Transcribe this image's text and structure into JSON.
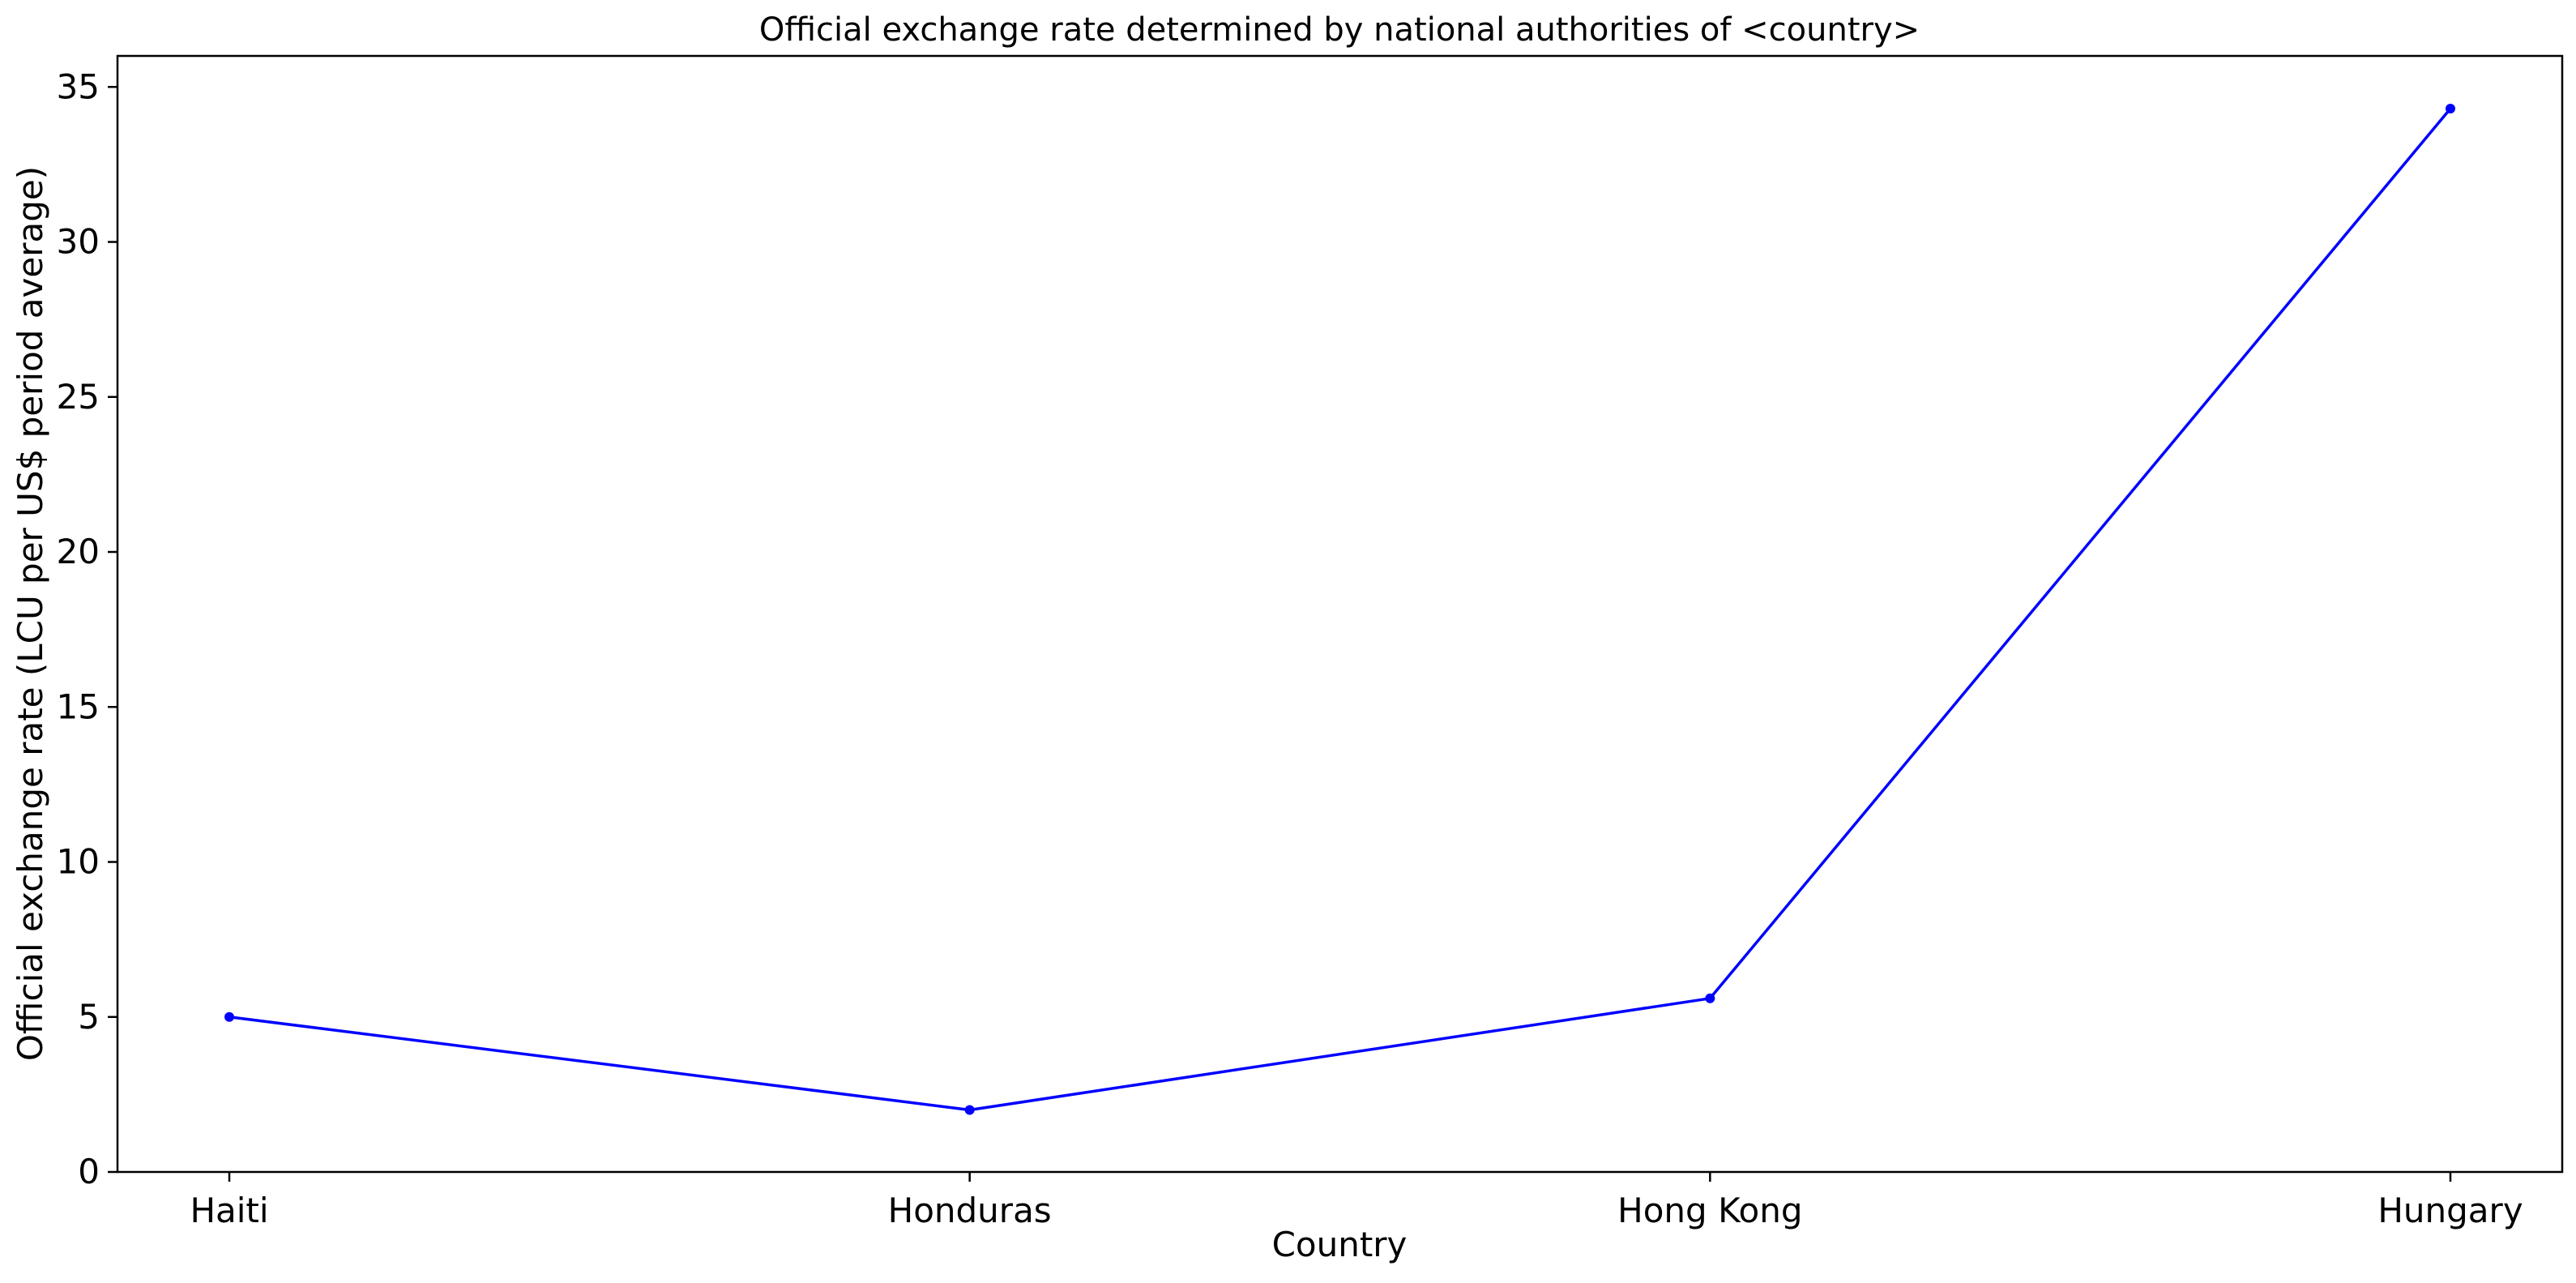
{
  "chart_data": {
    "type": "line",
    "title": "Official exchange rate determined by national authorities of <country>",
    "xlabel": "Country",
    "ylabel": "Official exchange rate (LCU per US$ period average)",
    "categories": [
      "Haiti",
      "Honduras",
      "Hong Kong",
      "Hungary"
    ],
    "series": [
      {
        "values": [
          5.0,
          2.0,
          5.6,
          34.3
        ],
        "color": "#0000ff"
      }
    ],
    "ylim": [
      0,
      36
    ],
    "yticks": [
      0,
      5,
      10,
      15,
      20,
      25,
      30,
      35
    ],
    "grid": false,
    "legend": false
  }
}
